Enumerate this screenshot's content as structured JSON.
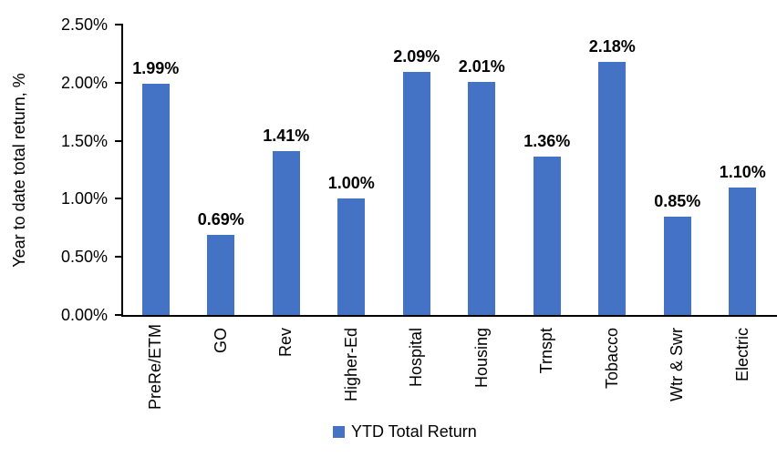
{
  "chart_data": {
    "type": "bar",
    "categories": [
      "PreRe/ETM",
      "GO",
      "Rev",
      "Higher-Ed",
      "Hospital",
      "Housing",
      "Trnspt",
      "Tobacco",
      "Wtr & Swr",
      "Electric"
    ],
    "values": [
      1.99,
      0.69,
      1.41,
      1.0,
      2.09,
      2.01,
      1.36,
      2.18,
      0.85,
      1.1
    ],
    "value_labels": [
      "1.99%",
      "0.69%",
      "1.41%",
      "1.00%",
      "2.09%",
      "2.01%",
      "1.36%",
      "2.18%",
      "0.85%",
      "1.10%"
    ],
    "title": "",
    "xlabel": "",
    "ylabel": "Year to date total return, %",
    "yticks": [
      "0.00%",
      "0.50%",
      "1.00%",
      "1.50%",
      "2.00%",
      "2.50%"
    ],
    "ylim": [
      0,
      2.5
    ],
    "legend": "YTD Total Return",
    "legend_position": "bottom",
    "grid": false,
    "bar_color": "#4472C4",
    "axis_color": "#000000"
  }
}
